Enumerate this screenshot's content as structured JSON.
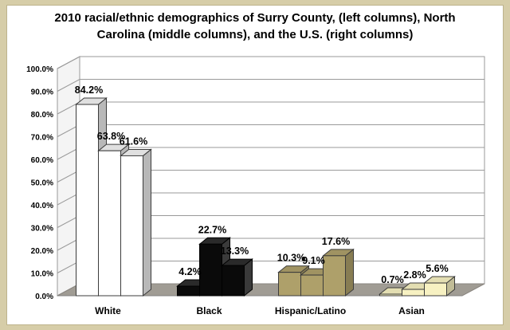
{
  "chart_data": {
    "type": "bar",
    "style": "3d-clustered-column",
    "title_lines": [
      "2010 racial/ethnic demographics of Surry County, (left columns), North",
      "Carolina (middle columns), and the U.S. (right columns)"
    ],
    "categories": [
      "White",
      "Black",
      "Hispanic/Latino",
      "Asian"
    ],
    "series": [
      {
        "name": "Surry County",
        "values": [
          84.2,
          4.2,
          10.3,
          0.7
        ]
      },
      {
        "name": "North Carolina",
        "values": [
          63.8,
          22.7,
          9.1,
          2.8
        ]
      },
      {
        "name": "U.S.",
        "values": [
          61.6,
          13.3,
          17.6,
          5.6
        ]
      }
    ],
    "value_labels": [
      [
        "84.2%",
        "63.8%",
        "61.6%"
      ],
      [
        "4.2%",
        "22.7%",
        "13.3%"
      ],
      [
        "10.3%",
        "9.1%",
        "17.6%"
      ],
      [
        "0.7%",
        "2.8%",
        "5.6%"
      ]
    ],
    "category_colors": [
      "#ffffff",
      "#0a0a0a",
      "#aea06a",
      "#f7f1c2"
    ],
    "ylim": [
      0,
      100
    ],
    "ytick_labels": [
      "0.0%",
      "10.0%",
      "20.0%",
      "30.0%",
      "40.0%",
      "50.0%",
      "60.0%",
      "70.0%",
      "80.0%",
      "90.0%",
      "100.0%"
    ],
    "grid": true,
    "legend": "none"
  }
}
